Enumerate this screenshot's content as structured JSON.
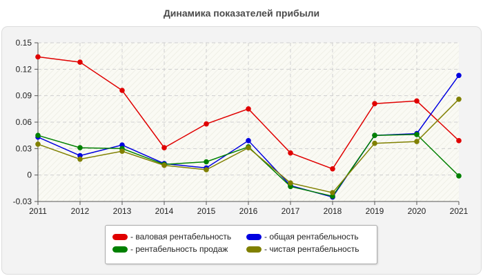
{
  "chart_data": {
    "type": "line",
    "title": "Динамика показателей прибыли",
    "xlabel": "",
    "ylabel": "",
    "x": [
      "2011",
      "2012",
      "2013",
      "2014",
      "2015",
      "2016",
      "2017",
      "2018",
      "2019",
      "2020",
      "2021"
    ],
    "ylim": [
      -0.03,
      0.15
    ],
    "yticks": [
      "-0.03",
      "0",
      "0.03",
      "0.06",
      "0.09",
      "0.12",
      "0.15"
    ],
    "grid": true,
    "legend_position": "bottom",
    "series": [
      {
        "name": "- валовая рентабельность",
        "color": "#e00000",
        "values": [
          0.134,
          0.128,
          0.096,
          0.031,
          0.058,
          0.075,
          0.025,
          0.007,
          0.081,
          0.084,
          0.039
        ]
      },
      {
        "name": "- общая рентабельность",
        "color": "#0000e0",
        "values": [
          0.043,
          0.022,
          0.034,
          0.013,
          0.008,
          0.039,
          -0.012,
          -0.025,
          0.045,
          0.047,
          0.113
        ]
      },
      {
        "name": "- рентабельность продаж",
        "color": "#008000",
        "values": [
          0.045,
          0.031,
          0.03,
          0.012,
          0.015,
          0.032,
          -0.013,
          -0.024,
          0.045,
          0.046,
          -0.001
        ]
      },
      {
        "name": "- чистая рентабельность",
        "color": "#808000",
        "values": [
          0.035,
          0.018,
          0.027,
          0.011,
          0.006,
          0.031,
          -0.009,
          -0.02,
          0.036,
          0.038,
          0.086
        ]
      }
    ]
  }
}
